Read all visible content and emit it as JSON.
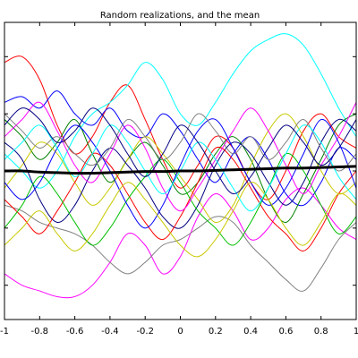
{
  "chart_data": {
    "type": "line",
    "title": "Random realizations, and the mean",
    "xlabel": "",
    "ylabel": "",
    "xlim": [
      -1,
      1
    ],
    "ylim": [
      -2.6,
      2.6
    ],
    "grid": false,
    "x_ticks": [
      -1,
      -0.8,
      -0.6,
      -0.4,
      -0.2,
      0,
      0.2,
      0.4,
      0.6,
      0.8,
      1
    ],
    "x_tick_labels": [
      "-1",
      "-0.8",
      "-0.6",
      "-0.4",
      "-0.2",
      "0",
      "0.2",
      "0.4",
      "0.6",
      "0.8",
      "1"
    ],
    "y_ticks": [
      -2,
      -1,
      0,
      1,
      2
    ],
    "x": [
      -1,
      -0.9,
      -0.8,
      -0.7,
      -0.6,
      -0.5,
      -0.4,
      -0.3,
      -0.2,
      -0.1,
      0,
      0.1,
      0.2,
      0.3,
      0.4,
      0.5,
      0.6,
      0.7,
      0.8,
      0.9,
      1
    ],
    "mean": {
      "name": "mean",
      "color": "#000000",
      "values": [
        0,
        0,
        -0.02,
        -0.03,
        -0.04,
        -0.04,
        -0.03,
        -0.02,
        -0.01,
        -0.01,
        0,
        0,
        0.01,
        0.02,
        0.03,
        0.04,
        0.05,
        0.05,
        0.06,
        0.07,
        0.08
      ]
    },
    "realizations": [
      {
        "color": "#ff0000",
        "values": [
          1.9,
          2.0,
          1.6,
          0.8,
          0.3,
          0.6,
          1.2,
          1.5,
          0.9,
          0.2,
          -0.3,
          0.1,
          0.6,
          0.4,
          -0.2,
          -0.5,
          0.0,
          0.7,
          1.0,
          0.6,
          0.4
        ]
      },
      {
        "color": "#00ffff",
        "values": [
          0.3,
          0.0,
          -0.3,
          0.0,
          0.6,
          1.0,
          1.2,
          1.5,
          1.9,
          1.6,
          1.0,
          0.8,
          1.2,
          1.7,
          2.1,
          2.3,
          2.4,
          2.2,
          1.7,
          1.1,
          0.6
        ]
      },
      {
        "color": "#0000ff",
        "values": [
          1.2,
          1.3,
          1.1,
          1.4,
          1.0,
          0.8,
          1.1,
          0.7,
          0.6,
          1.0,
          0.7,
          0.2,
          -0.2,
          0.3,
          0.6,
          0.2,
          -0.4,
          -0.6,
          -0.2,
          0.4,
          0.2
        ]
      },
      {
        "color": "#ff00ff",
        "values": [
          -1.8,
          -2.0,
          -2.1,
          -2.2,
          -2.2,
          -2.0,
          -1.6,
          -1.1,
          -1.3,
          -1.8,
          -1.5,
          -0.8,
          -0.4,
          -0.7,
          -1.2,
          -1.0,
          -0.5,
          -0.3,
          -0.6,
          -1.0,
          -1.2
        ]
      },
      {
        "color": "#808080",
        "values": [
          -0.6,
          -0.7,
          -0.9,
          -1.0,
          -1.1,
          -1.3,
          -1.6,
          -1.8,
          -1.6,
          -1.3,
          -1.2,
          -1.0,
          -0.8,
          -0.9,
          -1.3,
          -1.6,
          -1.9,
          -2.1,
          -1.7,
          -1.2,
          -0.9
        ]
      },
      {
        "color": "#008000",
        "values": [
          0.9,
          0.6,
          0.2,
          0.5,
          0.9,
          0.3,
          -0.2,
          0.2,
          0.5,
          0.1,
          -0.4,
          -0.2,
          0.3,
          0.6,
          0.2,
          -0.5,
          -0.9,
          -0.4,
          0.2,
          0.8,
          1.0
        ]
      },
      {
        "color": "#c8c800",
        "values": [
          -0.3,
          0.1,
          0.5,
          0.3,
          -0.2,
          -0.6,
          -0.3,
          0.2,
          0.6,
          0.3,
          -0.1,
          -0.5,
          -0.9,
          -0.6,
          0.1,
          0.7,
          1.0,
          0.6,
          0.0,
          -0.4,
          -0.2
        ]
      },
      {
        "color": "#000080",
        "values": [
          0.5,
          0.2,
          -0.5,
          -0.9,
          -0.6,
          0.0,
          0.4,
          0.1,
          -0.3,
          -0.8,
          -1.0,
          -0.6,
          0.1,
          0.5,
          0.3,
          -0.2,
          -0.6,
          -0.2,
          0.5,
          0.9,
          0.7
        ]
      },
      {
        "color": "#ff0000",
        "values": [
          -0.5,
          -0.8,
          -1.1,
          -0.7,
          -0.2,
          0.3,
          0.1,
          -0.4,
          -0.9,
          -1.2,
          -0.8,
          -0.2,
          0.4,
          0.2,
          -0.3,
          -0.8,
          -1.1,
          -1.4,
          -1.0,
          -0.4,
          0.0
        ]
      },
      {
        "color": "#00c000",
        "values": [
          -1.0,
          -0.6,
          -0.1,
          -0.4,
          -0.9,
          -1.3,
          -1.0,
          -0.5,
          -0.1,
          0.2,
          -0.2,
          -0.7,
          -1.0,
          -1.3,
          -0.9,
          -0.3,
          0.3,
          0.0,
          -0.6,
          -1.1,
          -0.8
        ]
      },
      {
        "color": "#ff00ff",
        "values": [
          0.6,
          0.9,
          1.2,
          0.7,
          0.1,
          -0.2,
          0.3,
          0.8,
          0.4,
          -0.3,
          -0.7,
          -0.3,
          0.2,
          0.7,
          1.1,
          0.7,
          0.1,
          -0.4,
          0.1,
          0.6,
          1.2
        ]
      },
      {
        "color": "#0000ff",
        "values": [
          -0.2,
          -0.5,
          -0.2,
          0.4,
          0.8,
          0.5,
          0.0,
          -0.6,
          -1.0,
          -0.6,
          0.1,
          0.7,
          0.9,
          0.4,
          -0.2,
          -0.6,
          -0.3,
          0.3,
          0.9,
          0.5,
          -0.3
        ]
      },
      {
        "color": "#808080",
        "values": [
          1.0,
          0.7,
          0.4,
          0.6,
          0.3,
          0.1,
          0.4,
          0.9,
          0.6,
          0.2,
          0.5,
          1.0,
          0.7,
          0.3,
          0.6,
          0.2,
          0.5,
          0.9,
          0.4,
          0.0,
          0.3
        ]
      },
      {
        "color": "#c8c800",
        "values": [
          -1.3,
          -1.0,
          -0.7,
          -1.1,
          -1.4,
          -1.1,
          -0.6,
          -0.2,
          -0.5,
          -0.9,
          -1.3,
          -1.5,
          -1.2,
          -0.7,
          -0.2,
          -0.5,
          -1.0,
          -1.3,
          -0.9,
          -0.4,
          -0.6
        ]
      },
      {
        "color": "#00ffff",
        "values": [
          0.2,
          0.5,
          0.8,
          0.4,
          -0.1,
          0.3,
          0.8,
          0.5,
          0.0,
          -0.4,
          0.0,
          0.5,
          0.2,
          -0.3,
          -0.7,
          -0.3,
          0.3,
          0.8,
          0.5,
          -0.1,
          -0.5
        ]
      },
      {
        "color": "#000080",
        "values": [
          0.8,
          1.1,
          0.9,
          0.5,
          0.7,
          1.1,
          0.8,
          0.3,
          -0.1,
          0.3,
          0.8,
          0.5,
          0.0,
          -0.4,
          -0.1,
          0.4,
          0.8,
          0.5,
          0.1,
          0.4,
          0.9
        ]
      }
    ]
  }
}
